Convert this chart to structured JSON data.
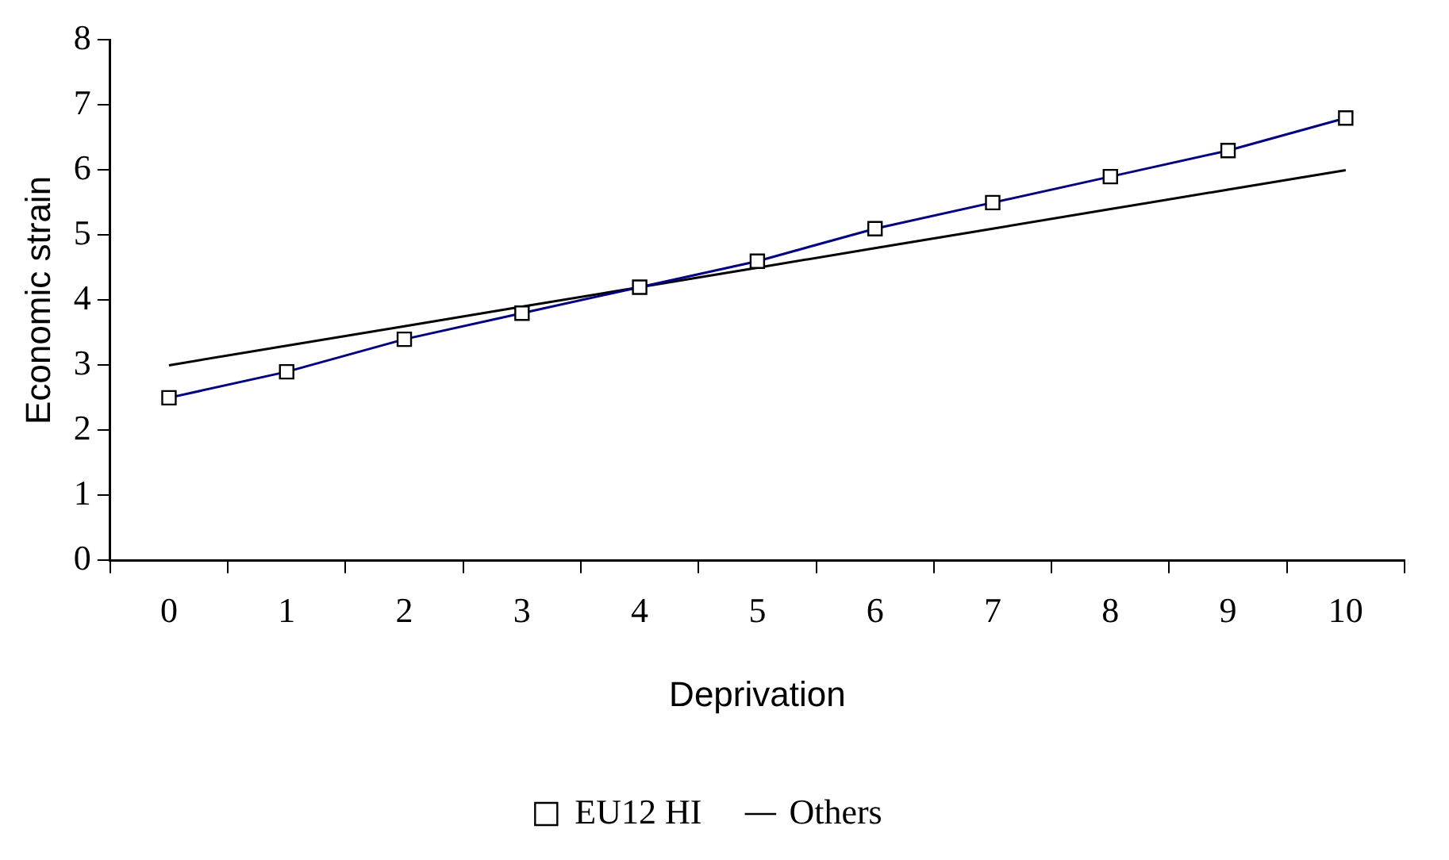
{
  "chart_data": {
    "type": "line",
    "xlabel": "Deprivation",
    "ylabel": "Economic strain",
    "categories": [
      "0",
      "1",
      "2",
      "3",
      "4",
      "5",
      "6",
      "7",
      "8",
      "9",
      "10"
    ],
    "ylim": [
      0,
      8
    ],
    "yticks": [
      0,
      1,
      2,
      3,
      4,
      5,
      6,
      7,
      8
    ],
    "grid": false,
    "legend": "bottom",
    "series": [
      {
        "name": "EU12 HI",
        "color": "#000080",
        "marker": "square",
        "values": [
          2.5,
          2.9,
          3.4,
          3.8,
          4.2,
          4.6,
          5.1,
          5.5,
          5.9,
          6.3,
          6.8
        ]
      },
      {
        "name": "Others",
        "color": "#000000",
        "marker": "none",
        "values": [
          3.0,
          3.3,
          3.6,
          3.9,
          4.2,
          4.5,
          4.8,
          5.1,
          5.4,
          5.7,
          6.0
        ]
      }
    ]
  }
}
